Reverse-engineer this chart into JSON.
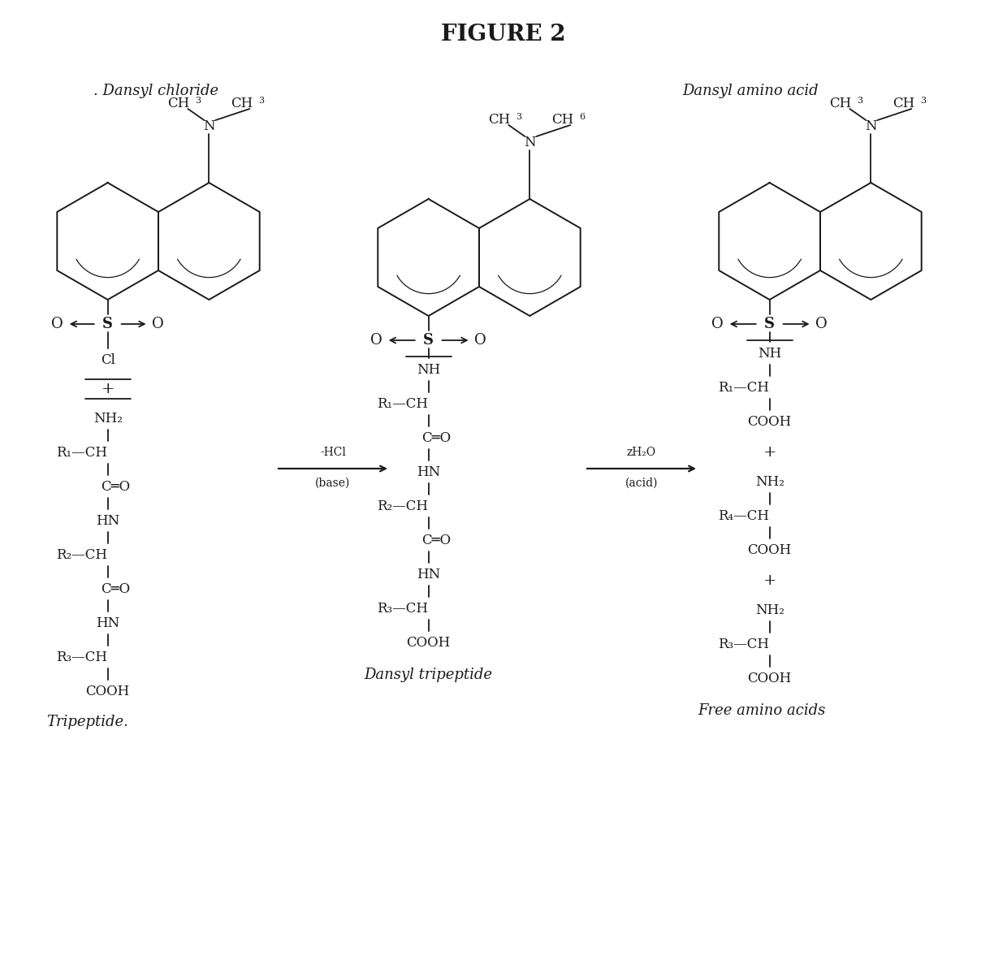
{
  "title": "FIGURE 2",
  "title_fontsize": 20,
  "title_fontweight": "bold",
  "background_color": "#ffffff",
  "text_color": "#1a1a1a",
  "label_dansyl_chloride": ". Dansyl chloride",
  "label_dansyl_amino_acid": "Dansyl amino acid",
  "label_tripeptide": "Tripeptide.",
  "label_dansyl_tripeptide": "Dansyl tripeptide",
  "label_free_amino_acids": "Free amino acids",
  "arrow1_above": "-HCl",
  "arrow1_below": "(base)",
  "arrow2_above": "zH₂O",
  "arrow2_below": "(acid)"
}
